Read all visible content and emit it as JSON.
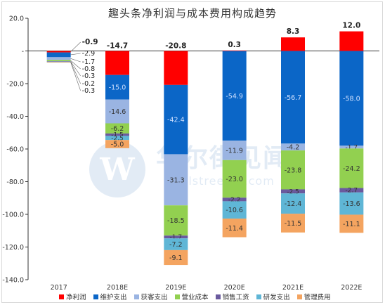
{
  "title": "趣头条净利润与成本费用构成趋势",
  "watermark": {
    "text": "华尔街见闻",
    "sub": "wallstreetcn.com"
  },
  "chart_data": {
    "type": "bar",
    "stacked": true,
    "title": "趣头条净利润与成本费用构成趋势",
    "xlabel": "",
    "ylabel": "",
    "ylim": [
      -140,
      20
    ],
    "yticks": [
      20,
      0,
      -20,
      -40,
      -60,
      -80,
      -100,
      -120,
      -140
    ],
    "ytick_labels": [
      "20.0",
      "-",
      "-20.0",
      "-40.0",
      "-60.0",
      "-80.0",
      "-100.0",
      "-120.0",
      "-140.0"
    ],
    "categories": [
      "2017",
      "2018E",
      "2019E",
      "2020E",
      "2021E",
      "2022E"
    ],
    "legend_position": "bottom",
    "series": [
      {
        "name": "净利润",
        "color": "#ff0000",
        "values": [
          -0.9,
          -14.7,
          -20.8,
          0.3,
          8.3,
          12.0
        ],
        "labels": [
          "-0.9",
          "-14.7",
          "-20.8",
          "0.3",
          "8.3",
          "12.0"
        ]
      },
      {
        "name": "维护支出",
        "color": "#0b66c7",
        "values": [
          -2.9,
          -15.0,
          -42.4,
          -54.9,
          -56.7,
          -58.0
        ],
        "labels": [
          "-2.9",
          "-15.0",
          "-42.4",
          "-54.9",
          "-56.7",
          "-58.0"
        ]
      },
      {
        "name": "获客支出",
        "color": "#9ab4e2",
        "values": [
          -1.7,
          -14.6,
          -31.3,
          -11.9,
          -4.2,
          -1.7
        ],
        "labels": [
          "-1.7",
          "-14.6",
          "-31.3",
          "-11.9",
          "-4.2",
          "-1.7"
        ]
      },
      {
        "name": "营业成本",
        "color": "#92d050",
        "values": [
          -0.8,
          -6.2,
          -18.5,
          -23.0,
          -23.8,
          -24.2
        ],
        "labels": [
          "-0.8",
          "-6.2",
          "-18.5",
          "-23.0",
          "-23.8",
          "-24.2"
        ]
      },
      {
        "name": "销售工资",
        "color": "#6a5a9e",
        "values": [
          -0.3,
          -1.5,
          -1.7,
          -2.2,
          -2.5,
          -2.7
        ],
        "labels": [
          "-0.3",
          "-1.5",
          "-1.7",
          "-2.2",
          "-2.5",
          "-2.7"
        ]
      },
      {
        "name": "研发支出",
        "color": "#5fb6d6",
        "values": [
          -0.2,
          -2.5,
          -7.2,
          -10.6,
          -12.4,
          -13.6
        ],
        "labels": [
          "-0.2",
          "-2.5",
          "-7.2",
          "-10.6",
          "-12.4",
          "-13.6"
        ]
      },
      {
        "name": "管理费用",
        "color": "#f4a460",
        "values": [
          -0.3,
          -5.0,
          -9.1,
          -11.4,
          -11.5,
          -11.1
        ],
        "labels": [
          "-0.3",
          "-5.0",
          "-9.1",
          "-11.4",
          "-11.5",
          "-11.1"
        ]
      }
    ]
  }
}
